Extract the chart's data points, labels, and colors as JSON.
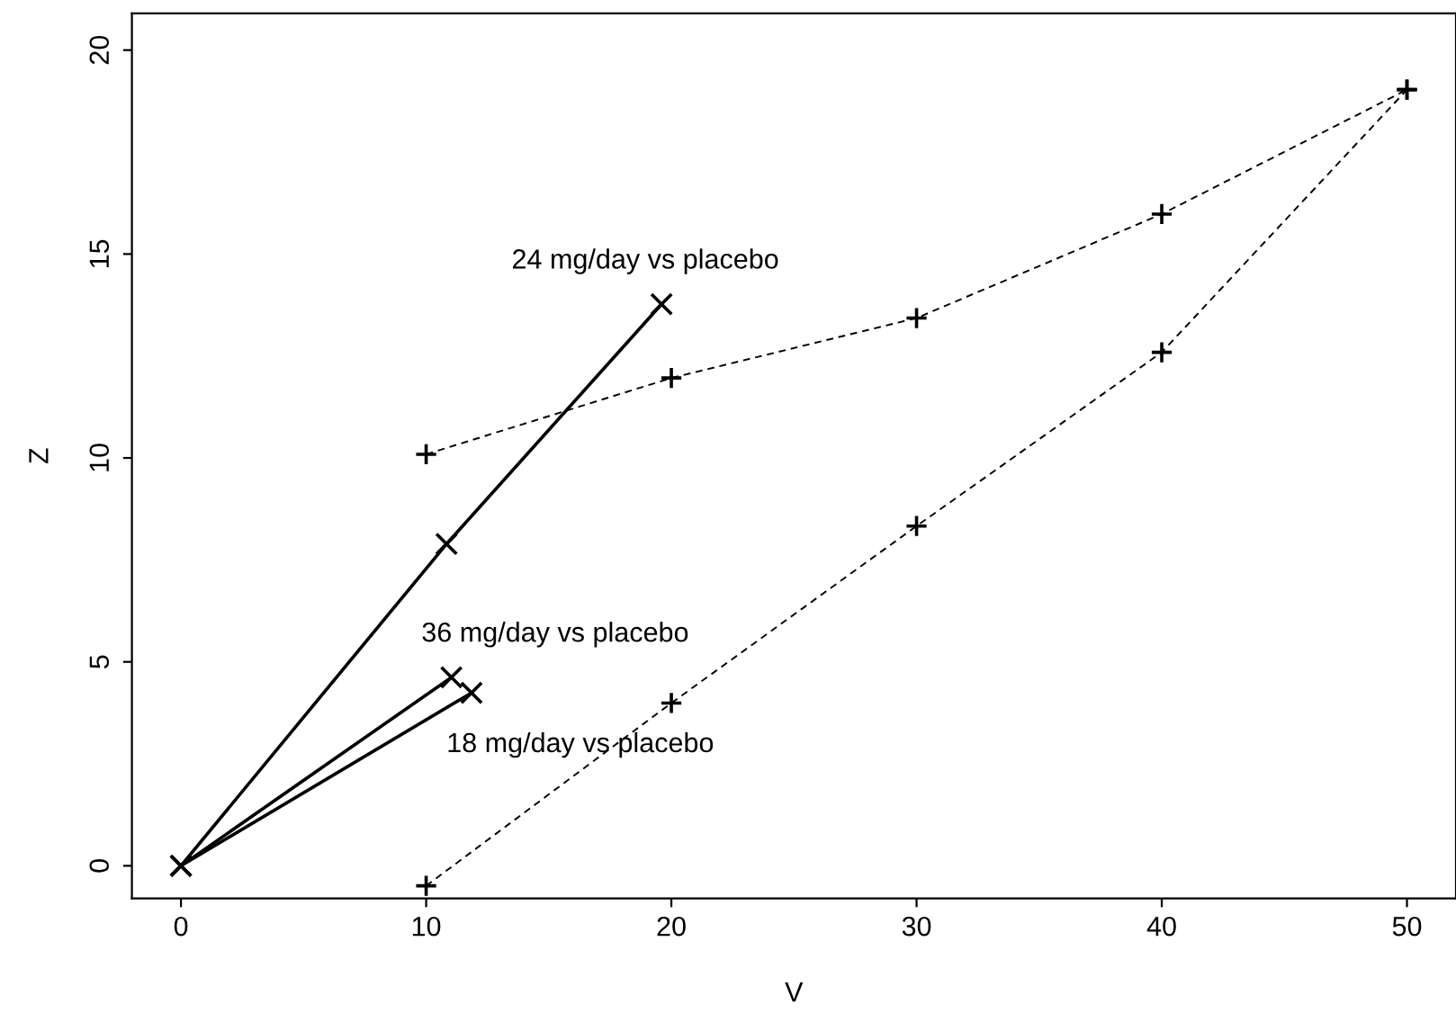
{
  "chart_data": {
    "type": "line",
    "xlabel": "V",
    "ylabel": "Z",
    "xlim": [
      -2,
      52
    ],
    "ylim": [
      -0.8,
      20.9
    ],
    "xticks": [
      0,
      10,
      20,
      30,
      40,
      50
    ],
    "yticks": [
      0,
      5,
      10,
      15,
      20
    ],
    "grid": false,
    "legend": false,
    "series": [
      {
        "color": "#000000",
        "x": [
          0,
          10.83,
          19.6
        ],
        "values": [
          0,
          7.89,
          13.77
        ],
        "marker": "cross",
        "line_style": "solid"
      },
      {
        "color": "#000000",
        "x": [
          0,
          11.03
        ],
        "values": [
          0,
          4.62
        ],
        "marker": "cross",
        "line_style": "solid"
      },
      {
        "color": "#000000",
        "x": [
          0,
          11.85
        ],
        "values": [
          0,
          4.24
        ],
        "marker": "cross",
        "line_style": "solid"
      },
      {
        "color": "#000000",
        "x": [
          10,
          20,
          30,
          40,
          50
        ],
        "values": [
          10.09,
          11.96,
          13.43,
          15.98,
          19.03
        ],
        "marker": "plus",
        "line_style": "dashed"
      },
      {
        "color": "#000000",
        "x": [
          10,
          20,
          30,
          40,
          50
        ],
        "values": [
          -0.49,
          3.99,
          8.33,
          12.59,
          19.03
        ],
        "marker": "plus",
        "line_style": "dashed"
      }
    ],
    "annotations": [
      {
        "text": "24 mg/day vs placebo",
        "x": 19.6,
        "y": 13.77
      },
      {
        "text": "36 mg/day vs placebo",
        "x": 11.03,
        "y": 4.62
      },
      {
        "text": "18 mg/day vs placebo",
        "x": 11.85,
        "y": 4.24
      }
    ]
  }
}
